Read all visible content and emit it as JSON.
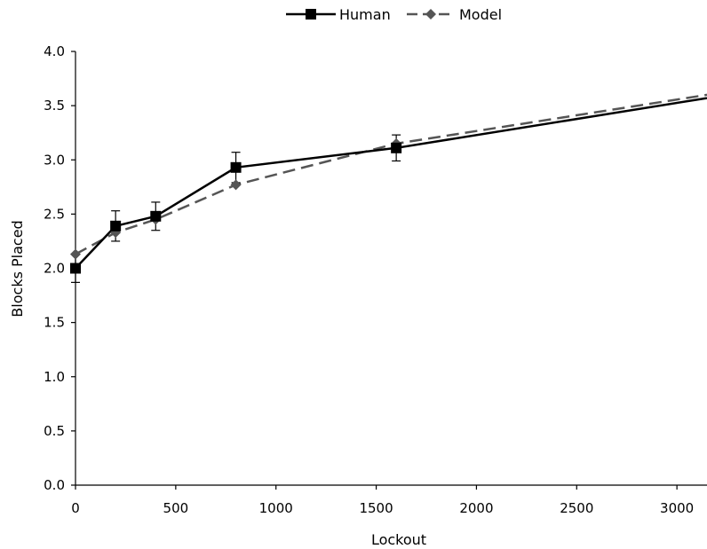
{
  "chart_data": {
    "type": "line",
    "title": "",
    "xlabel": "Lockout",
    "ylabel": "Blocks Placed",
    "xlim": [
      0,
      3150
    ],
    "ylim": [
      0,
      4.0
    ],
    "x_ticks": [
      0,
      500,
      1000,
      1500,
      2000,
      2500,
      3000
    ],
    "x_tick_labels": [
      "0",
      "500",
      "1000",
      "1500",
      "2000",
      "2500",
      "3000"
    ],
    "y_ticks": [
      0,
      0.5,
      1.0,
      1.5,
      2.0,
      2.5,
      3.0,
      3.5,
      4.0
    ],
    "y_tick_labels": [
      "0.0",
      "0.5",
      "1.0",
      "1.5",
      "2.0",
      "2.5",
      "3.0",
      "3.5",
      "4.0"
    ],
    "grid": false,
    "legend_position": "top-center",
    "series": [
      {
        "name": "Human",
        "color": "#000000",
        "line_style": "solid",
        "marker": "square",
        "x": [
          0,
          200,
          400,
          800,
          1600,
          3150
        ],
        "y": [
          2.0,
          2.39,
          2.48,
          2.93,
          3.11,
          3.57
        ],
        "marker_points": [
          0,
          1,
          2,
          3,
          4
        ],
        "error": [
          0.13,
          0.14,
          0.13,
          0.14,
          0.12,
          null
        ]
      },
      {
        "name": "Model",
        "color": "#555555",
        "line_style": "dashed",
        "marker": "diamond",
        "x": [
          0,
          200,
          400,
          800,
          1600,
          3150
        ],
        "y": [
          2.13,
          2.33,
          2.45,
          2.77,
          3.15,
          3.6
        ],
        "marker_points": [
          0,
          1,
          2,
          3,
          4
        ]
      }
    ]
  }
}
